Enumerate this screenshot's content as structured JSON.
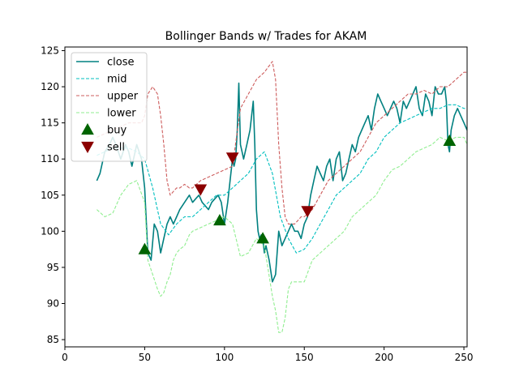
{
  "chart_data": {
    "type": "line",
    "title": "Bollinger Bands w/ Trades for AKAM",
    "xlabel": "",
    "ylabel": "",
    "xlim": [
      0,
      252
    ],
    "ylim": [
      84,
      125.5
    ],
    "x_ticks": [
      0,
      50,
      100,
      150,
      200,
      250
    ],
    "y_ticks": [
      85,
      90,
      95,
      100,
      105,
      110,
      115,
      120,
      125
    ],
    "grid": false,
    "legend_position": "top-left",
    "series": [
      {
        "name": "close",
        "style": "solid",
        "color": "#008080",
        "x": [
          20,
          22,
          25,
          28,
          30,
          32,
          35,
          38,
          40,
          42,
          45,
          48,
          50,
          52,
          54,
          56,
          58,
          60,
          62,
          64,
          66,
          68,
          70,
          72,
          75,
          78,
          80,
          82,
          84,
          86,
          88,
          90,
          92,
          94,
          96,
          98,
          100,
          102,
          104,
          105,
          106,
          107,
          108,
          109,
          110,
          111,
          112,
          114,
          116,
          118,
          119,
          120,
          121,
          122,
          123,
          124,
          125,
          126,
          128,
          130,
          132,
          134,
          136,
          138,
          140,
          142,
          144,
          146,
          148,
          150,
          152,
          154,
          156,
          158,
          160,
          162,
          164,
          166,
          168,
          170,
          172,
          174,
          176,
          178,
          180,
          182,
          184,
          186,
          188,
          190,
          192,
          194,
          196,
          198,
          200,
          202,
          204,
          206,
          208,
          210,
          212,
          214,
          216,
          218,
          220,
          222,
          224,
          226,
          228,
          230,
          232,
          234,
          236,
          238,
          239,
          240,
          241,
          242,
          244,
          246,
          248,
          250,
          252
        ],
        "values": [
          107,
          108,
          111,
          112,
          113,
          112,
          110,
          112,
          111,
          109,
          112,
          110,
          106,
          97,
          96,
          101,
          100,
          97,
          99,
          101,
          102,
          101,
          102,
          103,
          104,
          105,
          104,
          104.5,
          105,
          104,
          103.5,
          103,
          104,
          104.5,
          105,
          104,
          101,
          104,
          108,
          110,
          109,
          110,
          114,
          120.5,
          112,
          111,
          110,
          112,
          114,
          118,
          112,
          103,
          100,
          99,
          99.5,
          99,
          97,
          98,
          96,
          93,
          94,
          100,
          98,
          99,
          100,
          101,
          100,
          100,
          99,
          101,
          102,
          105,
          107,
          109,
          108,
          107,
          109,
          110,
          107,
          110,
          111,
          107,
          108,
          110,
          112,
          111,
          113,
          114,
          115,
          116,
          114,
          117,
          119,
          118,
          117,
          116,
          117,
          118,
          117,
          115,
          118,
          117,
          118,
          119,
          120,
          117,
          116,
          119,
          118,
          116,
          120,
          119,
          119,
          120,
          118,
          112,
          111,
          114,
          116,
          117,
          116,
          115,
          114
        ]
      },
      {
        "name": "mid",
        "style": "dashed",
        "color": "#00bfbf",
        "x": [
          20,
          25,
          30,
          35,
          40,
          45,
          50,
          55,
          60,
          65,
          70,
          75,
          80,
          85,
          90,
          95,
          100,
          105,
          110,
          115,
          120,
          125,
          130,
          135,
          140,
          145,
          150,
          155,
          160,
          165,
          170,
          175,
          180,
          185,
          190,
          195,
          200,
          205,
          210,
          215,
          220,
          225,
          230,
          235,
          240,
          245,
          250,
          252
        ],
        "values": [
          110.5,
          111,
          111.5,
          111.5,
          111.5,
          111,
          110,
          106,
          101,
          99.5,
          101,
          102,
          102,
          103,
          104,
          105,
          105,
          106,
          107,
          108,
          110,
          111,
          108,
          102,
          99,
          97,
          97.5,
          99,
          101,
          103,
          105,
          106,
          107,
          108,
          110,
          111,
          113,
          114,
          115,
          115.5,
          116,
          116.5,
          117,
          117,
          117.5,
          117.5,
          117,
          117
        ]
      },
      {
        "name": "upper",
        "style": "dashed",
        "color": "#cd5c5c",
        "x": [
          20,
          25,
          30,
          35,
          40,
          45,
          48,
          50,
          52,
          55,
          58,
          60,
          62,
          64,
          66,
          68,
          70,
          72,
          75,
          78,
          80,
          85,
          90,
          95,
          100,
          105,
          110,
          115,
          120,
          125,
          130,
          132,
          134,
          136,
          138,
          140,
          142,
          144,
          146,
          148,
          150,
          155,
          160,
          165,
          170,
          175,
          180,
          185,
          190,
          195,
          200,
          205,
          210,
          215,
          220,
          225,
          230,
          235,
          240,
          245,
          250,
          252
        ],
        "values": [
          113,
          113.5,
          114,
          114.5,
          115,
          115,
          115,
          116,
          119,
          120,
          119,
          116,
          112,
          107,
          105,
          105.5,
          106,
          106,
          106.5,
          106,
          106,
          107,
          107.5,
          108,
          108.5,
          109,
          117,
          119,
          121,
          122,
          123.5,
          121,
          112,
          106,
          102,
          101,
          101,
          101,
          101.5,
          102,
          102,
          103,
          105,
          107,
          108,
          109,
          110,
          111,
          113,
          115,
          116,
          117,
          118,
          119,
          119,
          119.5,
          119,
          120,
          120,
          121,
          122,
          122
        ]
      },
      {
        "name": "lower",
        "style": "dashed",
        "color": "#90ee90",
        "x": [
          20,
          25,
          30,
          35,
          40,
          45,
          50,
          52,
          55,
          58,
          60,
          62,
          64,
          66,
          68,
          70,
          72,
          75,
          78,
          80,
          85,
          90,
          95,
          100,
          105,
          110,
          115,
          120,
          125,
          130,
          132,
          134,
          136,
          138,
          140,
          142,
          145,
          150,
          155,
          160,
          165,
          170,
          175,
          180,
          185,
          190,
          195,
          200,
          205,
          210,
          215,
          220,
          225,
          230,
          235,
          240,
          245,
          250,
          252
        ],
        "values": [
          103,
          102,
          102.5,
          105,
          106.5,
          107,
          104,
          96,
          94,
          92,
          91,
          91.5,
          93,
          94,
          96,
          97,
          97.5,
          98,
          99.5,
          100,
          100.5,
          101,
          101.5,
          102,
          101,
          96.5,
          97,
          99,
          98,
          91,
          89,
          86,
          86,
          88,
          92,
          93,
          93,
          93,
          96,
          97,
          98,
          99,
          100,
          102,
          103,
          104,
          105,
          107,
          108.5,
          109,
          110,
          111,
          111.5,
          112,
          113,
          112.5,
          113,
          113,
          112
        ]
      }
    ],
    "markers": [
      {
        "name": "buy",
        "shape": "triangle-up",
        "color": "#006400",
        "points": [
          [
            50,
            97.5
          ],
          [
            97,
            101.5
          ],
          [
            124,
            99
          ],
          [
            241,
            112.5
          ]
        ]
      },
      {
        "name": "sell",
        "shape": "triangle-down",
        "color": "#8b0000",
        "points": [
          [
            85,
            105.8
          ],
          [
            105,
            110.2
          ],
          [
            152,
            102.8
          ]
        ]
      }
    ]
  }
}
